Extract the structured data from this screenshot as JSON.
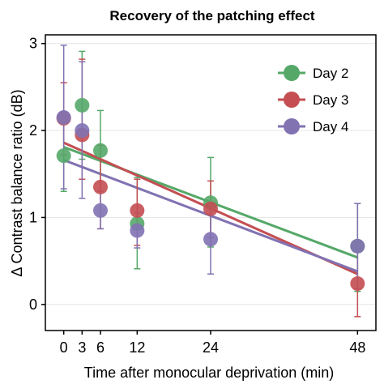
{
  "chart_data": {
    "type": "scatter",
    "title": "Recovery of the patching effect",
    "xlabel": "Time after monocular deprivation (min)",
    "ylabel": "Δ Contrast balance ratio (dB)",
    "xlim": [
      -3,
      51
    ],
    "ylim": [
      -0.3,
      3.1
    ],
    "xticks": [
      0,
      3,
      6,
      12,
      24,
      48
    ],
    "yticks": [
      0,
      1,
      2,
      3
    ],
    "grid": "horizontal",
    "legend_position": "top-right",
    "series": [
      {
        "name": "Day 2",
        "color": "#55a868",
        "x": [
          0,
          3,
          6,
          12,
          24,
          48
        ],
        "y": [
          1.71,
          2.29,
          1.77,
          0.93,
          1.17,
          0.67
        ],
        "err_low": [
          1.3,
          1.67,
          1.3,
          0.41,
          0.66,
          0.15
        ],
        "err_high": [
          2.15,
          2.91,
          2.23,
          1.46,
          1.69,
          1.16
        ],
        "fit": [
          1.81,
          0.54
        ]
      },
      {
        "name": "Day 3",
        "color": "#c44e52",
        "x": [
          0,
          3,
          6,
          12,
          24,
          48
        ],
        "y": [
          2.14,
          1.95,
          1.35,
          1.08,
          1.1,
          0.24
        ],
        "err_low": [
          1.72,
          1.44,
          0.87,
          0.68,
          0.77,
          -0.14
        ],
        "err_high": [
          2.55,
          2.82,
          1.83,
          1.44,
          1.42,
          0.63
        ],
        "fit": [
          1.86,
          0.35
        ]
      },
      {
        "name": "Day 4",
        "color": "#8172b2",
        "x": [
          0,
          3,
          6,
          12,
          24,
          48
        ],
        "y": [
          2.15,
          2.0,
          1.08,
          0.85,
          0.75,
          0.67
        ],
        "err_low": [
          1.33,
          1.22,
          0.87,
          0.65,
          0.35,
          0.18
        ],
        "err_high": [
          2.98,
          2.79,
          1.3,
          1.05,
          1.14,
          1.16
        ],
        "fit": [
          1.66,
          0.38
        ]
      }
    ]
  }
}
